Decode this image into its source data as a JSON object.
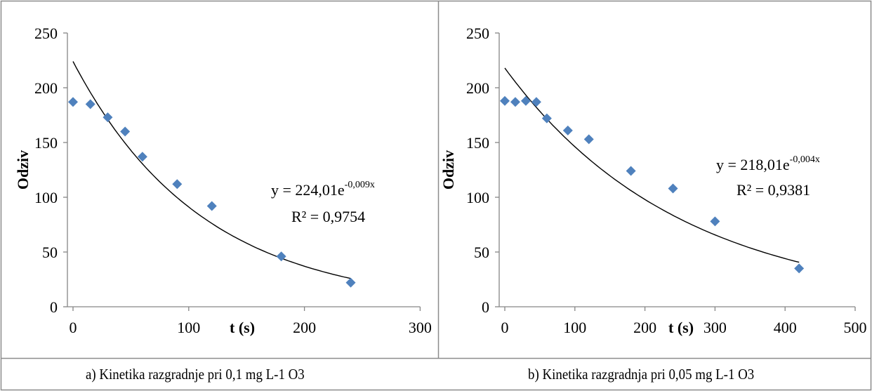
{
  "captions": {
    "a": "a) Kinetika razgradnje pri 0,1 mg L-1 O3",
    "b": "b) Kinetika razgradnja pri 0,05 mg L-1 O3"
  },
  "chart_data": [
    {
      "type": "scatter",
      "title": "",
      "xlabel": "t (s)",
      "ylabel": "Odziv",
      "xlim": [
        0,
        300
      ],
      "ylim": [
        0,
        250
      ],
      "xticks": [
        0,
        100,
        200,
        300
      ],
      "yticks": [
        0,
        50,
        100,
        150,
        200,
        250
      ],
      "x": [
        0,
        15,
        30,
        45,
        60,
        90,
        120,
        180,
        240
      ],
      "y": [
        187,
        185,
        173,
        160,
        137,
        112,
        92,
        46,
        22
      ],
      "marker_color": "#4f81bd",
      "trendline": {
        "type": "exponential",
        "a": 224.01,
        "b": -0.009,
        "x_range": [
          0,
          240
        ]
      },
      "equation": {
        "prefix": "y = 224,01e",
        "exponent": "-0,009x"
      },
      "r2": "R² = 0,9754"
    },
    {
      "type": "scatter",
      "title": "",
      "xlabel": "t (s)",
      "ylabel": "Odziv",
      "xlim": [
        0,
        500
      ],
      "ylim": [
        0,
        250
      ],
      "xticks": [
        0,
        100,
        200,
        300,
        400,
        500
      ],
      "yticks": [
        0,
        50,
        100,
        150,
        200,
        250
      ],
      "x": [
        0,
        15,
        30,
        45,
        60,
        90,
        120,
        180,
        240,
        300,
        420
      ],
      "y": [
        188,
        187,
        188,
        187,
        172,
        161,
        153,
        124,
        108,
        78,
        35
      ],
      "marker_color": "#4f81bd",
      "trendline": {
        "type": "exponential",
        "a": 218.01,
        "b": -0.004,
        "x_range": [
          0,
          420
        ]
      },
      "equation": {
        "prefix": "y = 218,01e",
        "exponent": "-0,004x"
      },
      "r2": "R² = 0,9381"
    }
  ]
}
